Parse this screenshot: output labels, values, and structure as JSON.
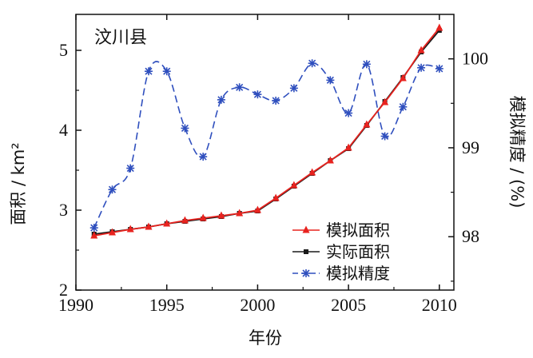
{
  "chart_data": {
    "type": "line",
    "title": "汶川县",
    "xlabel": "年份",
    "ylabel": "面积 / km²",
    "y2label": "模拟精度 / (%)",
    "xlim": [
      1990,
      2010.8
    ],
    "ylim": [
      2,
      5.45
    ],
    "y2lim": [
      97.4,
      100.5
    ],
    "x_ticks": [
      "1990",
      "1995",
      "2000",
      "2005",
      "2010"
    ],
    "y_ticks": [
      "2",
      "3",
      "4",
      "5"
    ],
    "y2_ticks": [
      "98",
      "99",
      "100"
    ],
    "legend_position": "bottom-right",
    "x": [
      1991,
      1992,
      1993,
      1994,
      1995,
      1996,
      1997,
      1998,
      1999,
      2000,
      2001,
      2002,
      2003,
      2004,
      2005,
      2006,
      2007,
      2008,
      2009,
      2010
    ],
    "series": [
      {
        "name": "模拟面积",
        "axis": "left",
        "color": "#e8231f",
        "marker": "triangle",
        "values": [
          2.68,
          2.72,
          2.76,
          2.79,
          2.83,
          2.87,
          2.9,
          2.93,
          2.96,
          3.0,
          3.15,
          3.31,
          3.47,
          3.62,
          3.78,
          4.07,
          4.35,
          4.65,
          5.0,
          5.28
        ]
      },
      {
        "name": "实际面积",
        "axis": "left",
        "color": "#1a1a1a",
        "marker": "square",
        "values": [
          2.7,
          2.73,
          2.76,
          2.79,
          2.83,
          2.86,
          2.89,
          2.92,
          2.96,
          2.99,
          3.14,
          3.3,
          3.46,
          3.62,
          3.77,
          4.06,
          4.36,
          4.66,
          4.98,
          5.25
        ]
      },
      {
        "name": "模拟精度",
        "axis": "right",
        "color": "#2f4fbe",
        "marker": "asterisk",
        "dash": "dashed",
        "values": [
          98.1,
          98.53,
          98.77,
          99.86,
          99.86,
          99.22,
          98.9,
          99.54,
          99.68,
          99.6,
          99.53,
          99.67,
          99.95,
          99.76,
          99.39,
          99.94,
          99.13,
          99.46,
          99.9,
          99.89
        ]
      }
    ]
  }
}
